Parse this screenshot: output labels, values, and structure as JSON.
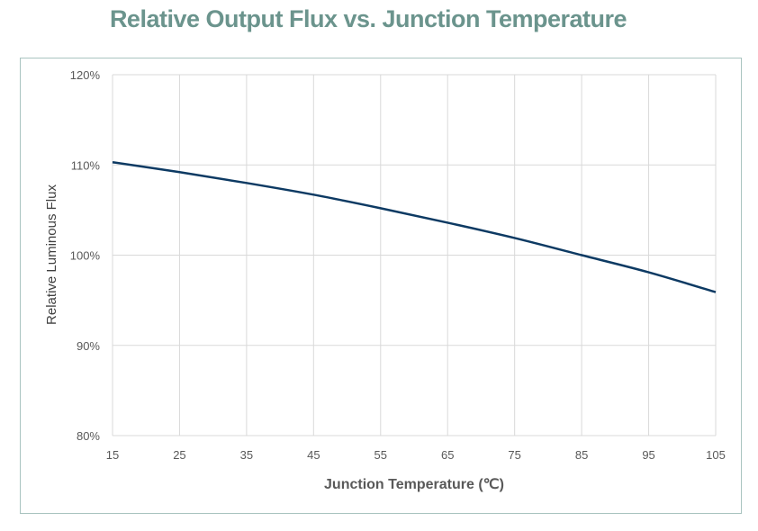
{
  "chart_data": {
    "type": "line",
    "title": "Relative Output Flux vs. Junction Temperature",
    "xlabel": "Junction Temperature (℃)",
    "ylabel": "Relative Luminous Flux",
    "x": [
      15,
      25,
      35,
      45,
      55,
      65,
      75,
      85,
      95,
      105
    ],
    "series": [
      {
        "name": "Relative Luminous Flux",
        "values": [
          110.3,
          109.2,
          108.0,
          106.7,
          105.2,
          103.6,
          101.9,
          100.0,
          98.1,
          95.9
        ]
      }
    ],
    "xlim": [
      15,
      105
    ],
    "ylim": [
      80,
      120
    ],
    "xticks": [
      "15",
      "25",
      "35",
      "45",
      "55",
      "65",
      "75",
      "85",
      "95",
      "105"
    ],
    "yticks": [
      "80%",
      "90%",
      "100%",
      "110%",
      "120%"
    ],
    "grid": true,
    "line_color": "#0d3a63"
  }
}
